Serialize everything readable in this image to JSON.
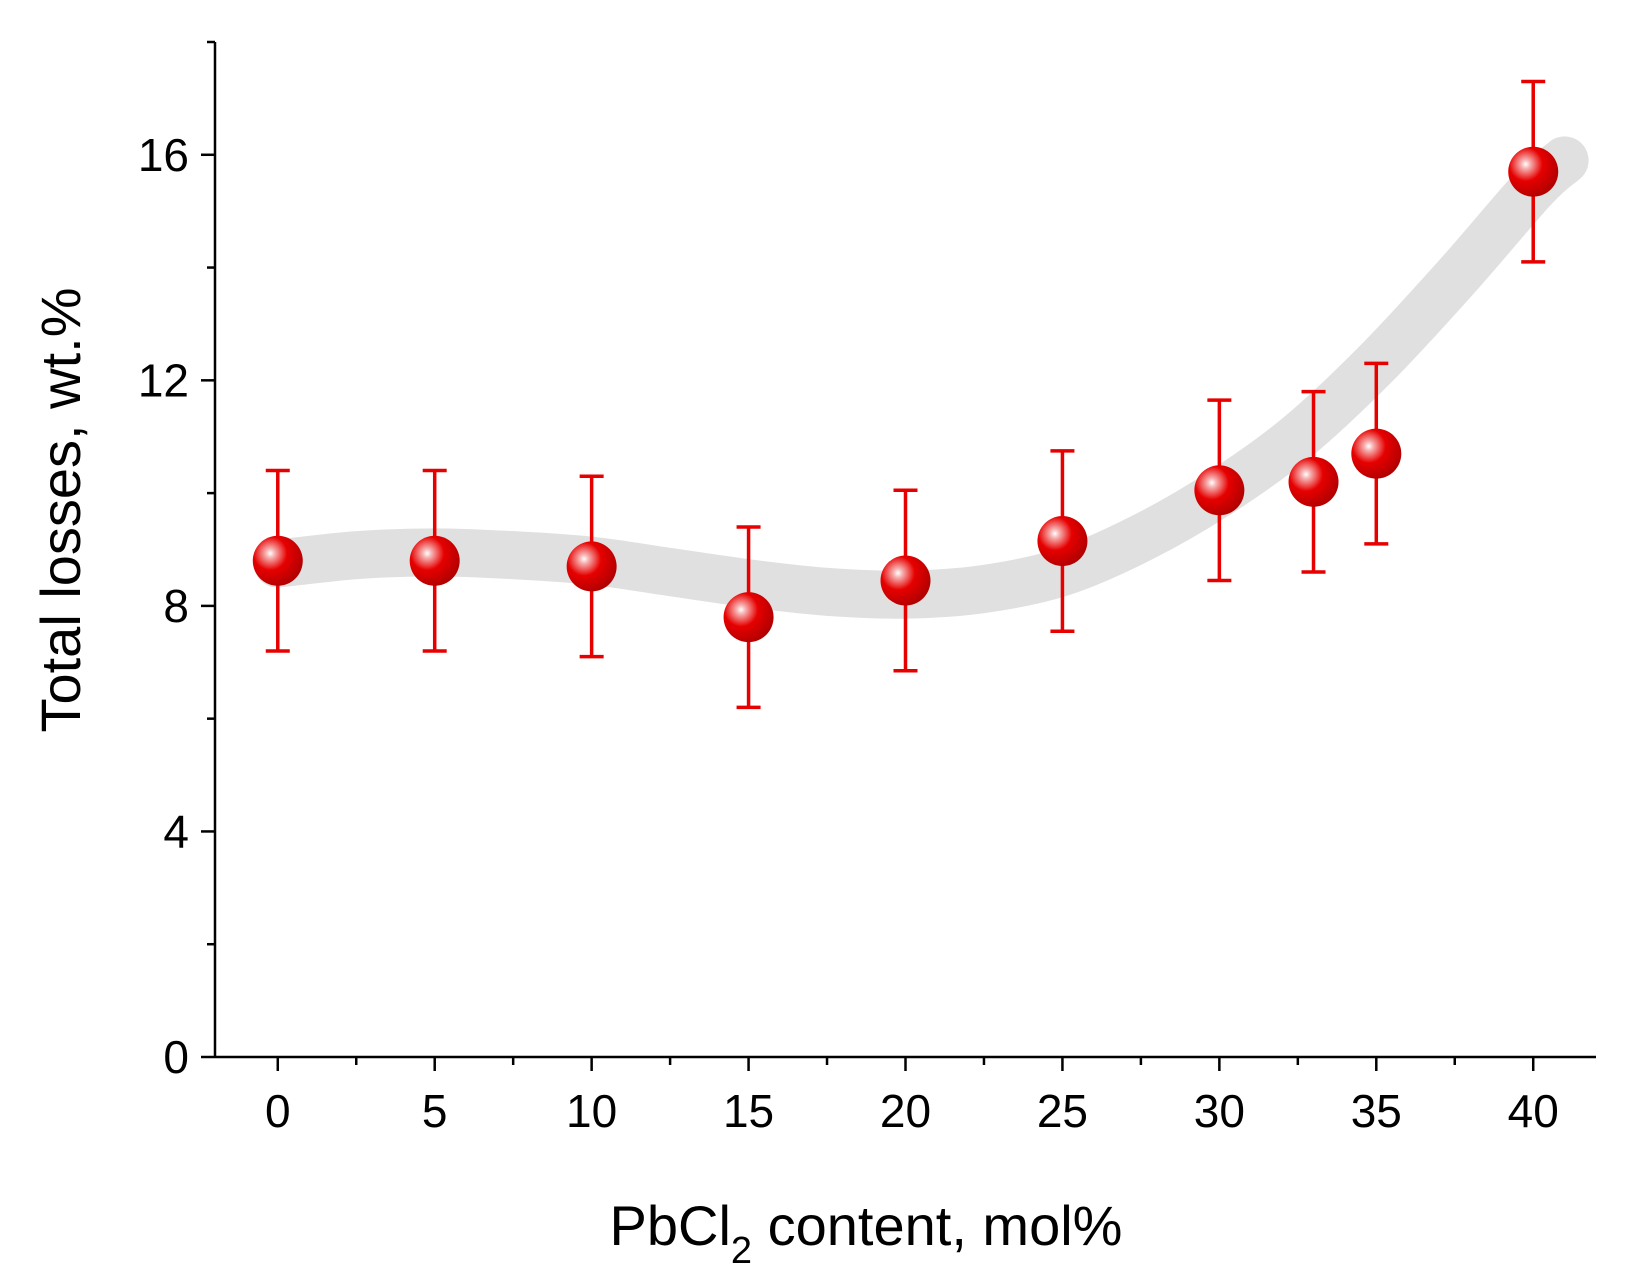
{
  "chart_data": {
    "type": "scatter",
    "title": "",
    "xlabel": {
      "main": "PbCl",
      "subscript": "2",
      "rest": " content, mol%"
    },
    "ylabel": "Total losses, wt.%",
    "xlim": [
      -2,
      42
    ],
    "ylim": [
      0,
      18
    ],
    "xticks": [
      0,
      5,
      10,
      15,
      20,
      25,
      30,
      35,
      40
    ],
    "xtick_labels": [
      "0",
      "5",
      "10",
      "15",
      "20",
      "25",
      "30",
      "35",
      "40"
    ],
    "yticks": [
      0,
      4,
      8,
      12,
      16
    ],
    "ytick_labels": [
      "0",
      "4",
      "8",
      "12",
      "16"
    ],
    "y_minor_ticks": [
      2,
      6,
      10,
      14,
      18
    ],
    "grid": false,
    "series": [
      {
        "name": "Total losses",
        "marker_color": "#e60000",
        "errorbar_color": "#e60000",
        "points": [
          {
            "x": 0,
            "y": 8.8,
            "yerr": 1.6
          },
          {
            "x": 5,
            "y": 8.8,
            "yerr": 1.6
          },
          {
            "x": 10,
            "y": 8.7,
            "yerr": 1.6
          },
          {
            "x": 15,
            "y": 7.8,
            "yerr": 1.6
          },
          {
            "x": 20,
            "y": 8.45,
            "yerr": 1.6
          },
          {
            "x": 25,
            "y": 9.15,
            "yerr": 1.6
          },
          {
            "x": 30,
            "y": 10.05,
            "yerr": 1.6
          },
          {
            "x": 33,
            "y": 10.2,
            "yerr": 1.6
          },
          {
            "x": 35,
            "y": 10.7,
            "yerr": 1.6
          },
          {
            "x": 40,
            "y": 15.7,
            "yerr": 1.6
          }
        ]
      }
    ],
    "trend_band": {
      "color": "#e0e0e0",
      "x": [
        0,
        2.5,
        5,
        7.5,
        10,
        12.5,
        15,
        17.5,
        20,
        22.5,
        25,
        27.5,
        30,
        32.5,
        35,
        37.5,
        40,
        41
      ],
      "y": [
        8.75,
        8.9,
        8.95,
        8.9,
        8.8,
        8.6,
        8.4,
        8.25,
        8.2,
        8.3,
        8.6,
        9.2,
        10.0,
        11.0,
        12.3,
        13.8,
        15.4,
        15.9
      ]
    }
  }
}
